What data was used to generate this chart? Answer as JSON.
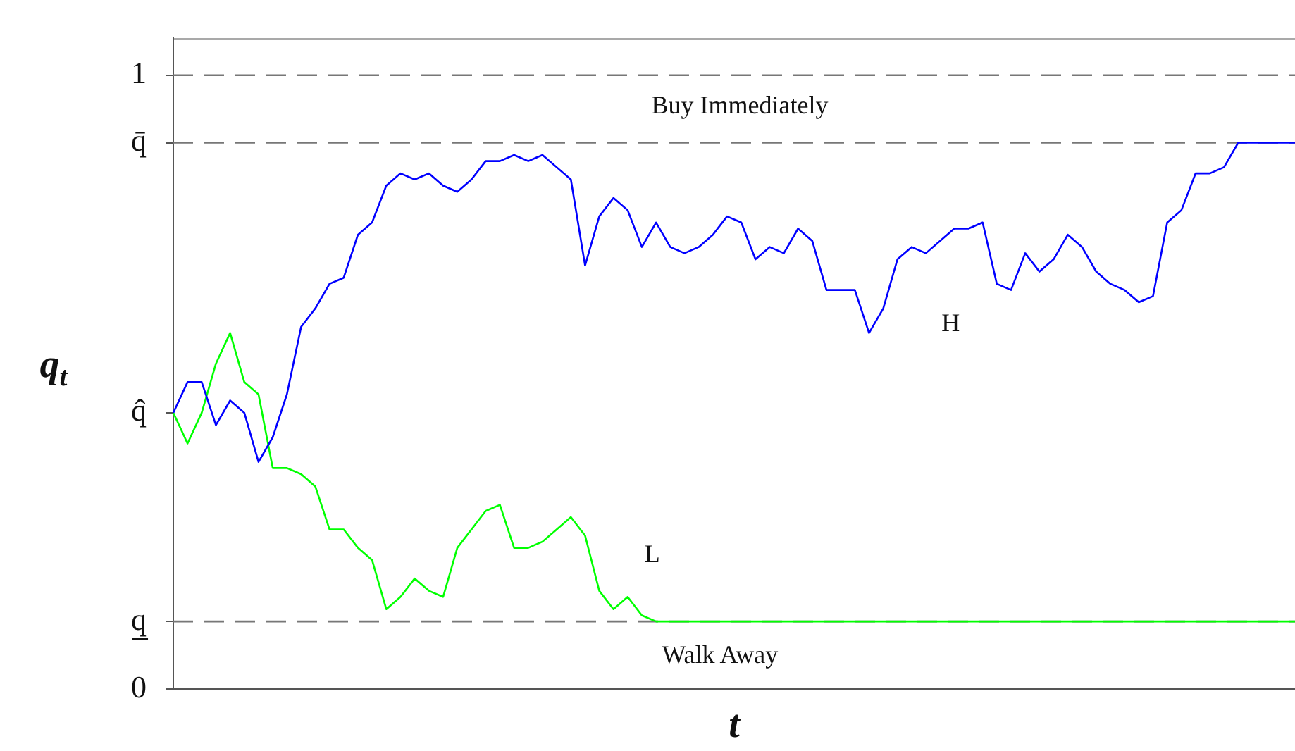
{
  "chart_data": {
    "type": "line",
    "xlabel": "t",
    "ylabel": "q$_{t}$",
    "categories": [
      null,
      null,
      null,
      null,
      null,
      null,
      null,
      null,
      null,
      null,
      null,
      null,
      null,
      null,
      null,
      null,
      null,
      null,
      null,
      null,
      null,
      null,
      null,
      null,
      null,
      null,
      null,
      null,
      null,
      null,
      null,
      null,
      null,
      null,
      null,
      null,
      null,
      null,
      null,
      null,
      null,
      null,
      null,
      null,
      null,
      null,
      null,
      null,
      null,
      null,
      null,
      null,
      null,
      null,
      null,
      null,
      null,
      null,
      null,
      null,
      null,
      null,
      null,
      null,
      null,
      null,
      null,
      null,
      null,
      null,
      null,
      null,
      null,
      null,
      null,
      null,
      null,
      null,
      null,
      null
    ],
    "ylim": [
      0,
      1.06
    ],
    "yticks": [
      0,
      {
        "value": 0.11,
        "label": "q̲"
      },
      {
        "value": 0.45,
        "label": "q̂"
      },
      {
        "value": 0.89,
        "label": "q̄"
      },
      1
    ],
    "tick_labels": "y",
    "grid": false,
    "legend": false,
    "marker": "none",
    "line_style": "solid",
    "series": [
      {
        "color": "#0000ff",
        "values": [
          0.45,
          0.5,
          0.5,
          0.43,
          0.47,
          0.45,
          0.37,
          0.41,
          0.48,
          0.59,
          0.62,
          0.66,
          0.67,
          0.74,
          0.76,
          0.82,
          0.84,
          0.83,
          0.84,
          0.82,
          0.81,
          0.83,
          0.86,
          0.86,
          0.87,
          0.86,
          0.87,
          0.85,
          0.83,
          0.69,
          0.77,
          0.8,
          0.78,
          0.72,
          0.76,
          0.72,
          0.71,
          0.72,
          0.74,
          0.77,
          0.76,
          0.7,
          0.72,
          0.71,
          0.75,
          0.73,
          0.65,
          0.65,
          0.65,
          0.58,
          0.62,
          0.7,
          0.72,
          0.71,
          0.73,
          0.75,
          0.75,
          0.76,
          0.66,
          0.65,
          0.71,
          0.68,
          0.7,
          0.74,
          0.72,
          0.68,
          0.66,
          0.65,
          0.63,
          0.64,
          0.76,
          0.78,
          0.84,
          0.84,
          0.85,
          0.89,
          0.89,
          0.89,
          0.89,
          0.89
        ]
      },
      {
        "color": "#00ff00",
        "values": [
          0.45,
          0.4,
          0.45,
          0.53,
          0.58,
          0.5,
          0.48,
          0.36,
          0.36,
          0.35,
          0.33,
          0.26,
          0.26,
          0.23,
          0.21,
          0.13,
          0.15,
          0.18,
          0.16,
          0.15,
          0.23,
          0.26,
          0.29,
          0.3,
          0.23,
          0.23,
          0.24,
          0.26,
          0.28,
          0.25,
          0.16,
          0.13,
          0.15,
          0.12,
          0.11,
          0.11,
          0.11,
          0.11,
          0.11,
          0.11,
          0.11,
          0.11,
          0.11,
          0.11,
          0.11,
          0.11,
          0.11,
          0.11,
          0.11,
          0.11,
          0.11,
          0.11,
          0.11,
          0.11,
          0.11,
          0.11,
          0.11,
          0.11,
          0.11,
          0.11,
          0.11,
          0.11,
          0.11,
          0.11,
          0.11,
          0.11,
          0.11,
          0.11,
          0.11,
          0.11,
          0.11,
          0.11,
          0.11,
          0.11,
          0.11,
          0.11,
          0.11,
          0.11,
          0.11,
          0.11
        ]
      }
    ],
    "ref_lines": [
      {
        "axis": "y",
        "value": 1,
        "color": "#777777",
        "line_style": "dashed"
      },
      {
        "axis": "y",
        "value": 0.89,
        "color": "#777777",
        "line_style": "dashed"
      },
      {
        "axis": "y",
        "value": 0.11,
        "color": "#777777",
        "line_style": "dashed"
      }
    ],
    "annotations": [
      "Buy Immediately",
      "Walk Away",
      "H",
      "L"
    ]
  }
}
